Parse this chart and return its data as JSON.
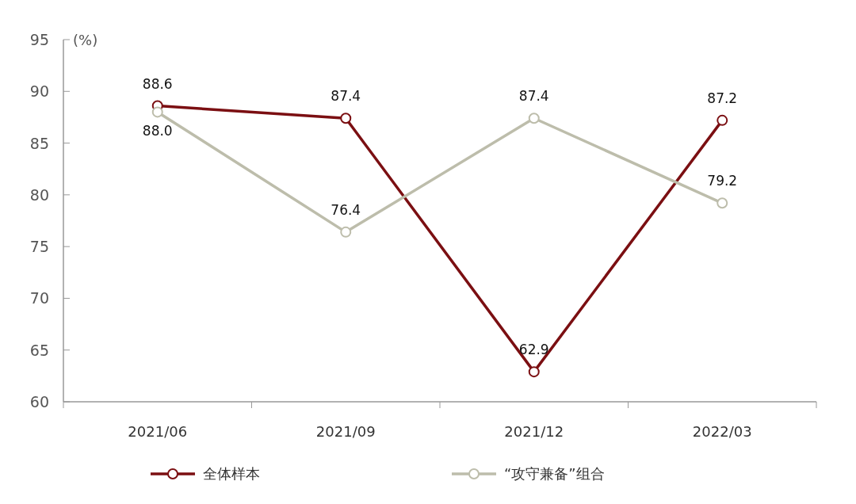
{
  "chart_data": {
    "type": "line",
    "ylabel": "(%)",
    "categories": [
      "2021/06",
      "2021/09",
      "2021/12",
      "2022/03"
    ],
    "series": [
      {
        "name": "全体样本",
        "color": "#7b0f12",
        "values": [
          88.6,
          87.4,
          62.9,
          87.2
        ],
        "value_labels": [
          "88.6",
          "87.4",
          "62.9",
          "87.2"
        ]
      },
      {
        "name": "“攻守兼备”组合",
        "color": "#bdbdab",
        "values": [
          88.0,
          76.4,
          87.4,
          79.2
        ],
        "value_labels": [
          "88.0",
          "76.4",
          "87.4",
          "79.2"
        ]
      }
    ],
    "ylim": [
      60,
      95
    ],
    "yticks": [
      60,
      65,
      70,
      75,
      80,
      85,
      90,
      95
    ],
    "grid": false,
    "legend": "bottom",
    "marker": "circle",
    "line_style": "solid"
  }
}
